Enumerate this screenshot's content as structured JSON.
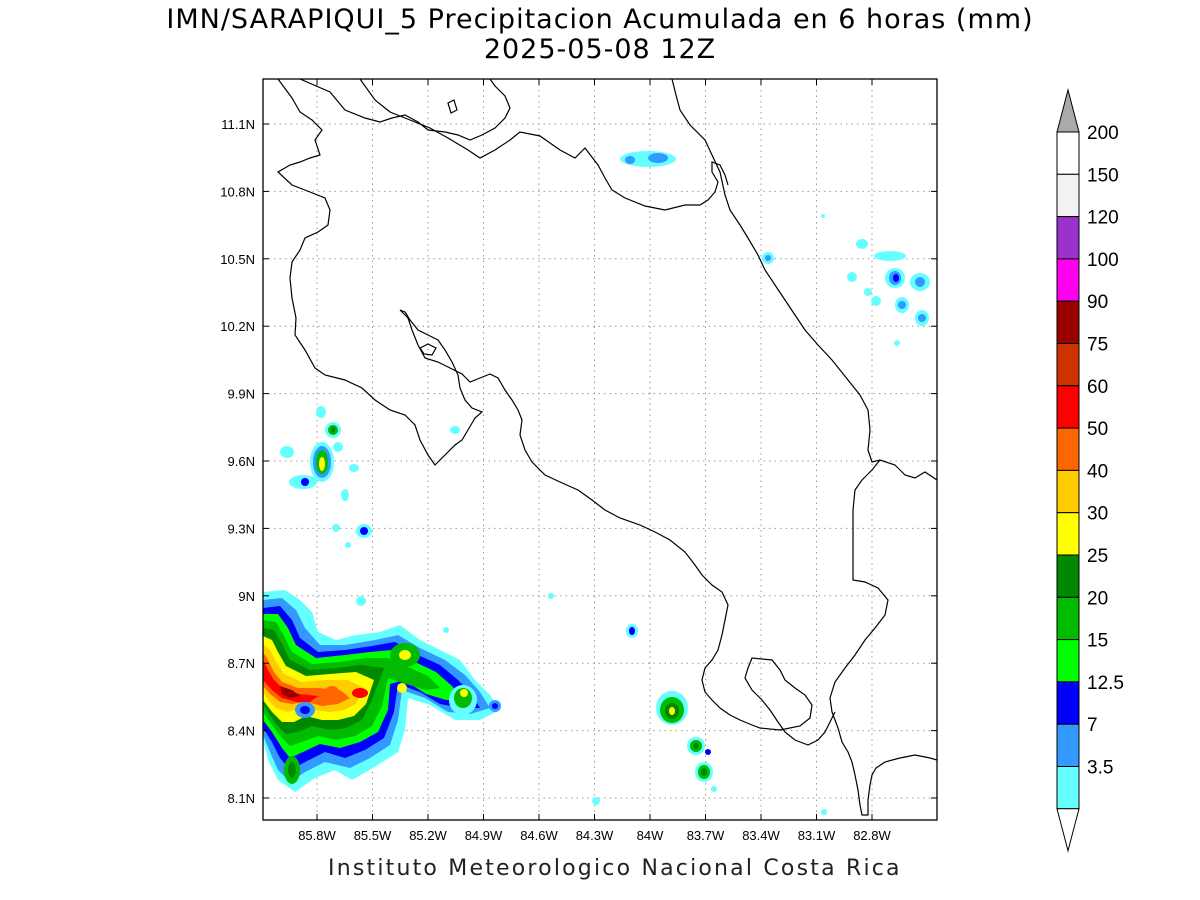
{
  "title_line1": "IMN/SARAPIQUI_5 Precipitacion Acumulada en 6 horas (mm)",
  "title_line2": "2025-05-08 12Z",
  "footer": "Instituto Meteorologico Nacional Costa Rica",
  "axes": {
    "lon_ticks": [
      "85.8W",
      "85.5W",
      "85.2W",
      "84.9W",
      "84.6W",
      "84.3W",
      "84W",
      "83.7W",
      "83.4W",
      "83.1W",
      "82.8W"
    ],
    "lat_ticks": [
      "11.1N",
      "10.8N",
      "10.5N",
      "10.2N",
      "9.9N",
      "9.6N",
      "9.3N",
      "9N",
      "8.7N",
      "8.4N",
      "8.1N"
    ],
    "grid": "dotted"
  },
  "colorbar": {
    "labels": [
      "200",
      "150",
      "120",
      "100",
      "90",
      "75",
      "60",
      "50",
      "40",
      "30",
      "25",
      "20",
      "15",
      "12.5",
      "7",
      "3.5"
    ],
    "colors": [
      "#ffffff",
      "#f2f2f2",
      "#9933cc",
      "#ff00ee",
      "#990000",
      "#cc3300",
      "#ff0000",
      "#ff6600",
      "#ffcc00",
      "#ffff00",
      "#008800",
      "#00bb00",
      "#00ff00",
      "#0000ff",
      "#3399ff",
      "#66ffff"
    ],
    "overflow_color": "#aaaaaa"
  }
}
